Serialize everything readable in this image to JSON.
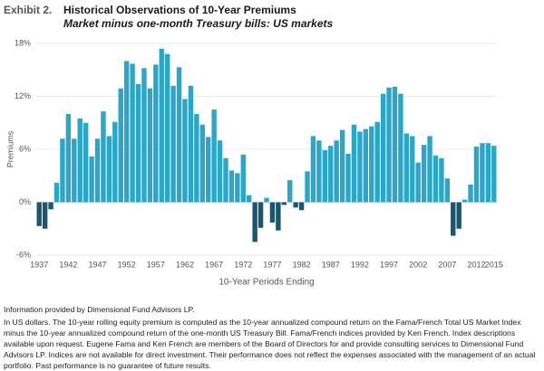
{
  "chart_data": {
    "type": "bar",
    "exhibit": "Exhibit 2.",
    "title": "Historical Observations of 10-Year Premiums",
    "subtitle": "Market minus one-month Treasury bills: US markets",
    "y_label": "Premiums",
    "x_label": "10-Year Periods Ending",
    "categories": [
      "1937",
      null,
      null,
      null,
      null,
      "1942",
      null,
      null,
      null,
      null,
      "1947",
      null,
      null,
      null,
      null,
      "1952",
      null,
      null,
      null,
      null,
      "1957",
      null,
      null,
      null,
      null,
      "1962",
      null,
      null,
      null,
      null,
      "1967",
      null,
      null,
      null,
      null,
      "1972",
      null,
      null,
      null,
      null,
      "1977",
      null,
      null,
      null,
      null,
      "1982",
      null,
      null,
      null,
      null,
      "1987",
      null,
      null,
      null,
      null,
      "1992",
      null,
      null,
      null,
      null,
      "1997",
      null,
      null,
      null,
      null,
      "2002",
      null,
      null,
      null,
      null,
      "2007",
      null,
      null,
      null,
      null,
      "2012",
      null,
      null,
      "2015"
    ],
    "values": [
      -2.7,
      -3.0,
      -0.8,
      2.2,
      7.2,
      10.0,
      7.2,
      9.5,
      9.0,
      5.2,
      7.2,
      10.3,
      7.5,
      9.1,
      12.9,
      16.0,
      15.7,
      13.4,
      15.2,
      12.9,
      15.6,
      17.4,
      16.8,
      13.2,
      15.3,
      11.7,
      13.2,
      10.0,
      8.8,
      7.4,
      10.5,
      7.0,
      5.0,
      3.6,
      3.3,
      5.4,
      0.8,
      -4.5,
      -2.9,
      0.5,
      -2.3,
      -3.2,
      -0.3,
      2.5,
      -0.6,
      -0.9,
      3.5,
      7.5,
      7.0,
      5.9,
      6.4,
      7.0,
      8.2,
      5.5,
      8.8,
      8.0,
      8.3,
      8.6,
      9.1,
      12.3,
      13.0,
      13.1,
      12.3,
      7.8,
      7.5,
      4.5,
      6.5,
      7.5,
      5.3,
      5.0,
      2.7,
      -3.8,
      -3.0,
      0.3,
      2.0,
      6.3,
      6.7,
      6.7,
      6.4
    ],
    "color": "#2aa6c8",
    "negative_color": "#1b5670",
    "ylim": [
      -6,
      18
    ],
    "yticks": [
      {
        "value": -6,
        "label": "-6%"
      },
      {
        "value": 0,
        "label": "0%"
      },
      {
        "value": 6,
        "label": "6%"
      },
      {
        "value": 12,
        "label": "12%"
      },
      {
        "value": 18,
        "label": "18%"
      }
    ],
    "grid": true
  },
  "notes": [
    "Information provided by Dimensional Fund Advisors LP.",
    "In US dollars. The 10-year rolling equity premium is computed as the 10-year annualized compound return on the Fama/French Total US Market Index minus the 10-year annualized compound return of the one-month US Treasury Bill. Fama/French indices provided by Ken French. Index descriptions available upon request. Eugene Fama and Ken French are members of the Board of Directors for and provide consulting services to Dimensional Fund Advisors LP. Indices are not available for direct investment. Their performance does not reflect the expenses associated with the management of an actual portfolio. Past performance is no guarantee of future results."
  ]
}
